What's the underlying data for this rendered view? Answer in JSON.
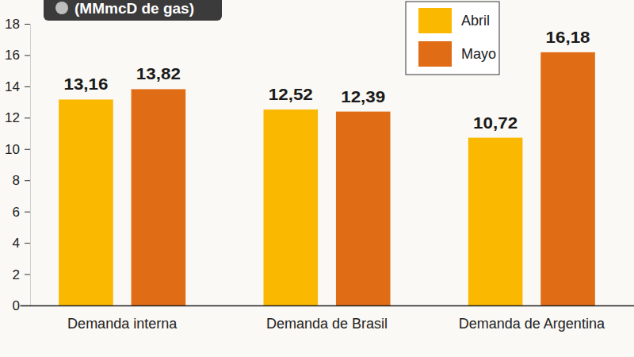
{
  "chart_data": {
    "type": "bar",
    "title": "(MMmcD de gas)",
    "categories": [
      "Demanda interna",
      "Demanda de Brasil",
      "Demanda de Argentina"
    ],
    "series": [
      {
        "name": "Abril",
        "color": "#fbb800",
        "values": [
          13.16,
          12.52,
          10.72
        ],
        "value_labels": [
          "13,16",
          "12,52",
          "10,72"
        ]
      },
      {
        "name": "Mayo",
        "color": "#e06c15",
        "values": [
          13.82,
          12.39,
          16.18
        ],
        "value_labels": [
          "13,82",
          "12,39",
          "16,18"
        ]
      }
    ],
    "ylim": [
      0,
      18
    ],
    "yticks": [
      0,
      2,
      4,
      6,
      8,
      10,
      12,
      14,
      16,
      18
    ],
    "grid": false,
    "legend": "upper right",
    "data_labels": true
  }
}
